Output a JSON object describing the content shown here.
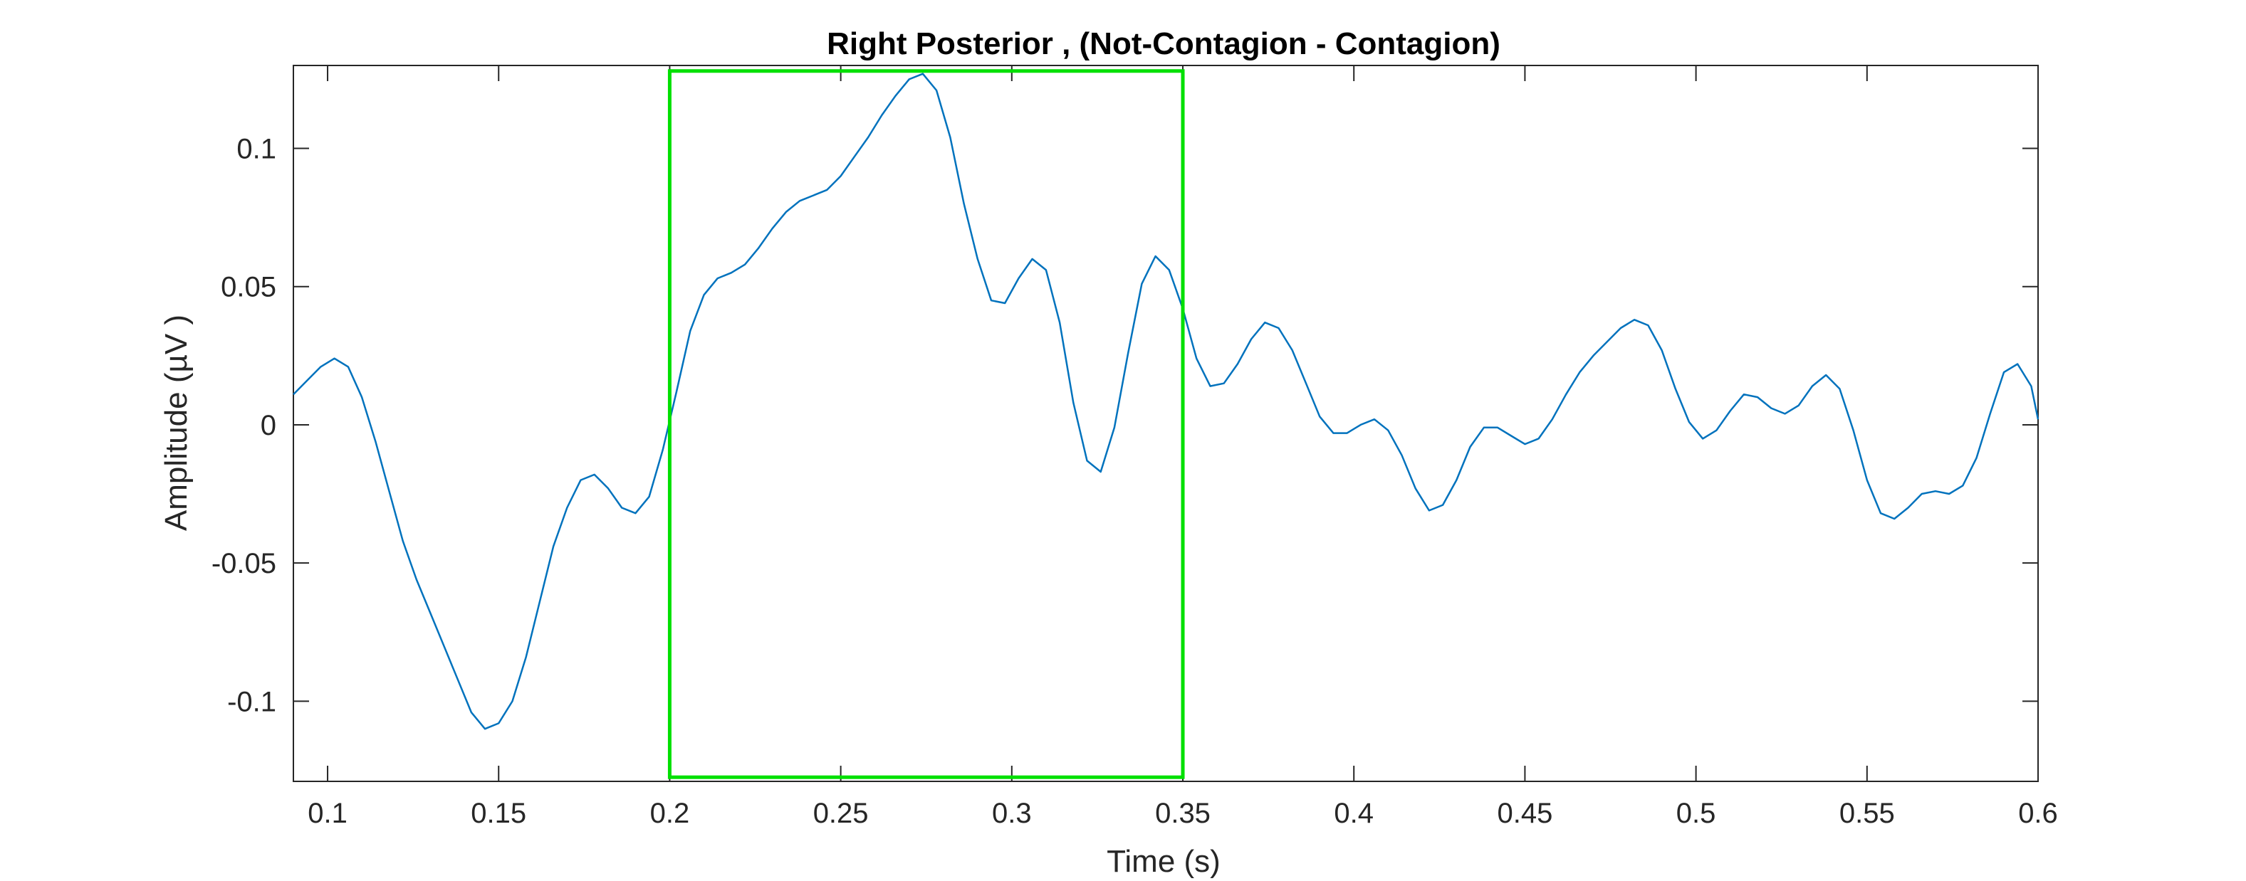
{
  "chart_data": {
    "type": "line",
    "title": "Right Posterior , (Not-Contagion - Contagion)",
    "xlabel": "Time (s)",
    "ylabel": "Amplitude (µV )",
    "xlim": [
      0.09,
      0.6
    ],
    "ylim": [
      -0.129,
      0.13
    ],
    "xticks": [
      0.1,
      0.15,
      0.2,
      0.25,
      0.3,
      0.35,
      0.4,
      0.45,
      0.5,
      0.55,
      0.6
    ],
    "xtick_labels": [
      "0.1",
      "0.15",
      "0.2",
      "0.25",
      "0.3",
      "0.35",
      "0.4",
      "0.45",
      "0.5",
      "0.55",
      "0.6"
    ],
    "yticks": [
      -0.1,
      -0.05,
      0,
      0.05,
      0.1
    ],
    "ytick_labels": [
      "-0.1",
      "-0.05",
      "0",
      "0.05",
      "0.1"
    ],
    "grid": false,
    "series": [
      {
        "color": "#0072BD",
        "x": [
          0.09,
          0.094,
          0.098,
          0.102,
          0.106,
          0.11,
          0.114,
          0.118,
          0.122,
          0.126,
          0.13,
          0.134,
          0.138,
          0.142,
          0.146,
          0.15,
          0.154,
          0.158,
          0.162,
          0.166,
          0.17,
          0.174,
          0.178,
          0.182,
          0.186,
          0.19,
          0.194,
          0.198,
          0.202,
          0.206,
          0.21,
          0.214,
          0.218,
          0.222,
          0.226,
          0.23,
          0.234,
          0.238,
          0.242,
          0.246,
          0.25,
          0.254,
          0.258,
          0.262,
          0.266,
          0.27,
          0.274,
          0.278,
          0.282,
          0.286,
          0.29,
          0.294,
          0.298,
          0.302,
          0.306,
          0.31,
          0.314,
          0.318,
          0.322,
          0.326,
          0.33,
          0.334,
          0.338,
          0.342,
          0.346,
          0.35,
          0.354,
          0.358,
          0.362,
          0.366,
          0.37,
          0.374,
          0.378,
          0.382,
          0.386,
          0.39,
          0.394,
          0.398,
          0.402,
          0.406,
          0.41,
          0.414,
          0.418,
          0.422,
          0.426,
          0.43,
          0.434,
          0.438,
          0.442,
          0.446,
          0.45,
          0.454,
          0.458,
          0.462,
          0.466,
          0.47,
          0.474,
          0.478,
          0.482,
          0.486,
          0.49,
          0.494,
          0.498,
          0.502,
          0.506,
          0.51,
          0.514,
          0.518,
          0.522,
          0.526,
          0.53,
          0.534,
          0.538,
          0.542,
          0.546,
          0.55,
          0.554,
          0.558,
          0.562,
          0.566,
          0.57,
          0.574,
          0.578,
          0.582,
          0.586,
          0.59,
          0.594,
          0.598,
          0.6
        ],
        "values": [
          0.011,
          0.016,
          0.021,
          0.024,
          0.021,
          0.01,
          -0.006,
          -0.024,
          -0.042,
          -0.056,
          -0.068,
          -0.08,
          -0.092,
          -0.104,
          -0.11,
          -0.108,
          -0.1,
          -0.084,
          -0.064,
          -0.044,
          -0.03,
          -0.02,
          -0.018,
          -0.023,
          -0.03,
          -0.032,
          -0.026,
          -0.009,
          0.012,
          0.034,
          0.047,
          0.053,
          0.055,
          0.058,
          0.064,
          0.071,
          0.077,
          0.081,
          0.083,
          0.085,
          0.09,
          0.097,
          0.104,
          0.112,
          0.119,
          0.125,
          0.127,
          0.121,
          0.104,
          0.08,
          0.06,
          0.045,
          0.044,
          0.053,
          0.06,
          0.056,
          0.037,
          0.008,
          -0.013,
          -0.017,
          -0.001,
          0.026,
          0.051,
          0.061,
          0.056,
          0.042,
          0.024,
          0.014,
          0.015,
          0.022,
          0.031,
          0.037,
          0.035,
          0.027,
          0.015,
          0.003,
          -0.003,
          -0.003,
          0.0,
          0.002,
          -0.002,
          -0.011,
          -0.023,
          -0.031,
          -0.029,
          -0.02,
          -0.008,
          -0.001,
          -0.001,
          -0.004,
          -0.007,
          -0.005,
          0.002,
          0.011,
          0.019,
          0.025,
          0.03,
          0.035,
          0.038,
          0.036,
          0.027,
          0.013,
          0.001,
          -0.005,
          -0.002,
          0.005,
          0.011,
          0.01,
          0.006,
          0.004,
          0.007,
          0.014,
          0.018,
          0.013,
          -0.002,
          -0.02,
          -0.032,
          -0.034,
          -0.03,
          -0.025,
          -0.024,
          -0.025,
          -0.022,
          -0.012,
          0.004,
          0.019,
          0.022,
          0.014,
          0.002
        ]
      }
    ],
    "highlight_box": {
      "color": "#00E000",
      "x_range": [
        0.2,
        0.35
      ],
      "y_range": [
        -0.1275,
        0.128
      ]
    }
  }
}
